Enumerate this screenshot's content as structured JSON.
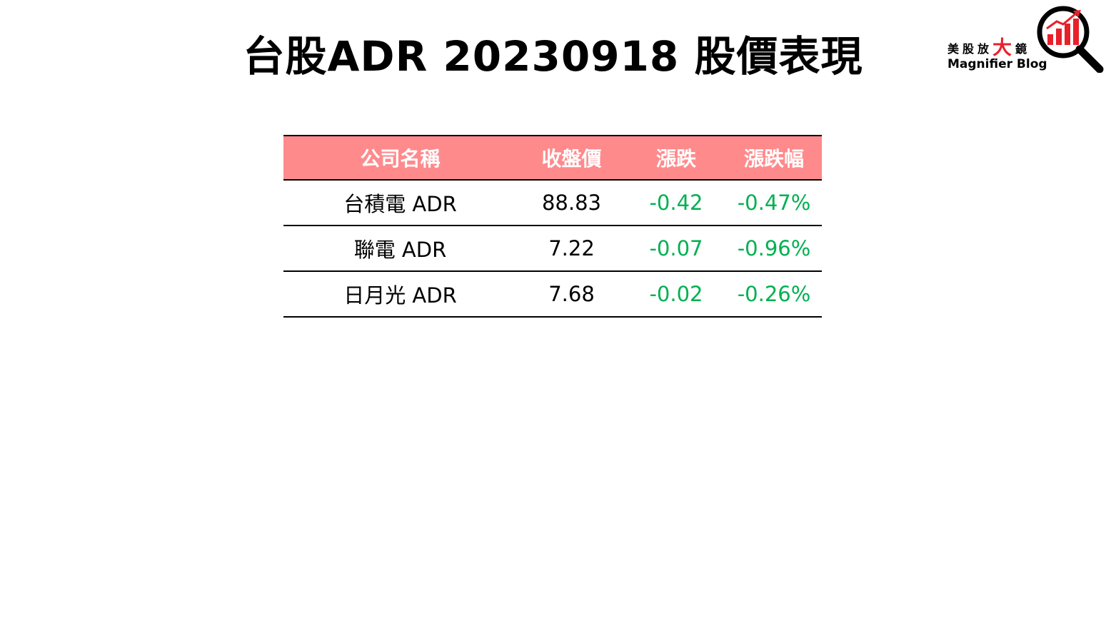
{
  "title": "台股ADR 20230918 股價表現",
  "logo": {
    "text_part1": "美股放",
    "text_big": "大",
    "text_part2": "鏡",
    "subtitle": "Magnifier Blog",
    "icon": "magnifier-chart-icon",
    "accent_color": "#e8202a"
  },
  "table": {
    "headers": [
      "公司名稱",
      "收盤價",
      "漲跌",
      "漲跌幅"
    ],
    "header_color": "#ff8a8c",
    "negative_color": "#00b050",
    "rows": [
      {
        "name": "台積電 ADR",
        "close": "88.83",
        "change": "-0.42",
        "change_pct": "-0.47%"
      },
      {
        "name": "聯電 ADR",
        "close": "7.22",
        "change": "-0.07",
        "change_pct": "-0.96%"
      },
      {
        "name": "日月光 ADR",
        "close": "7.68",
        "change": "-0.02",
        "change_pct": "-0.26%"
      }
    ]
  }
}
